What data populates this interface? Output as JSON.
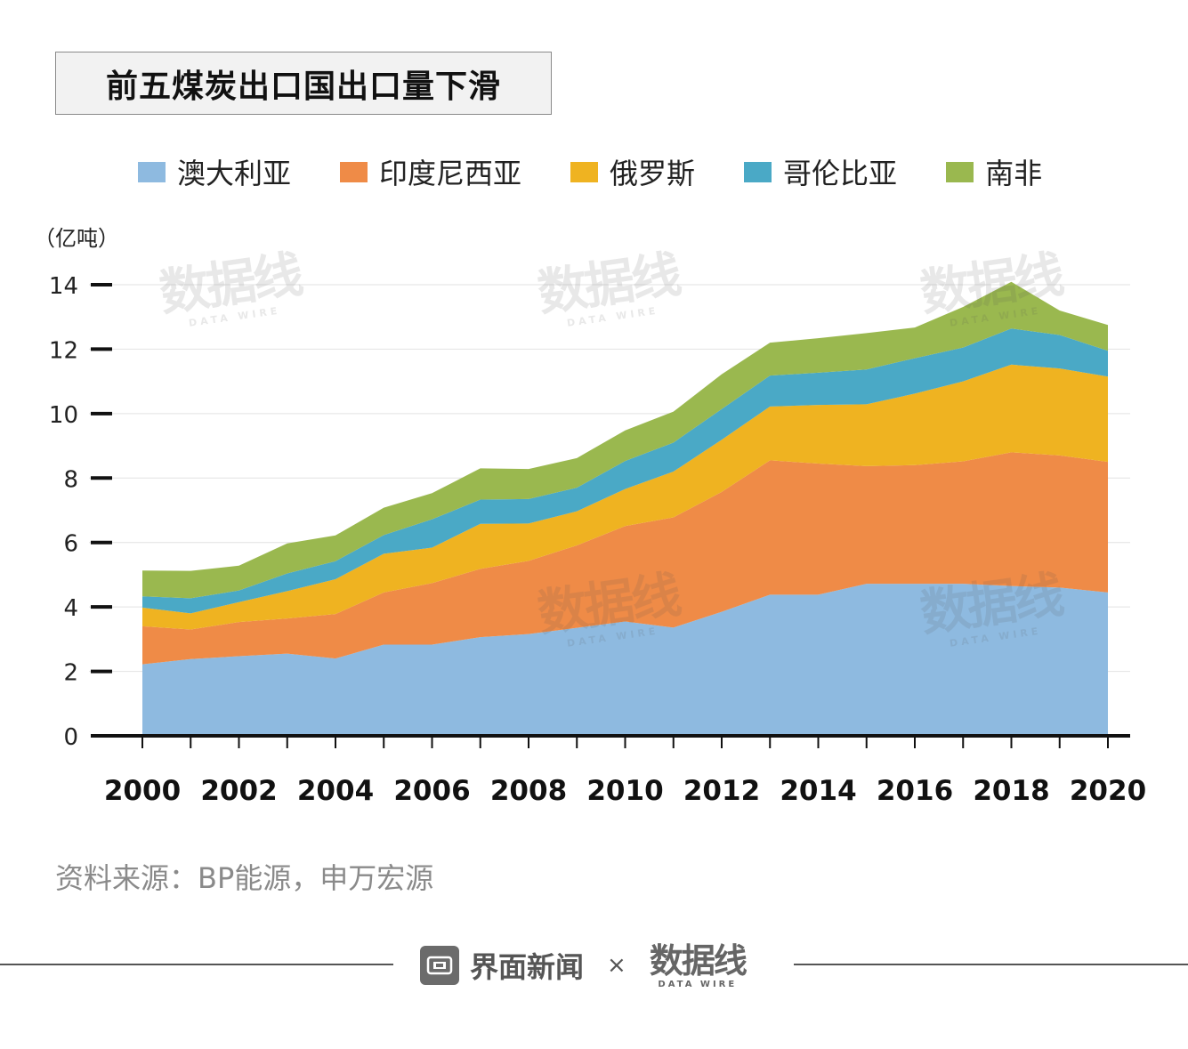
{
  "title": "前五煤炭出口国出口量下滑",
  "legend": [
    {
      "name": "澳大利亚",
      "color": "#8ebae0"
    },
    {
      "name": "印度尼西亚",
      "color": "#ef8b47"
    },
    {
      "name": "俄罗斯",
      "color": "#efb321"
    },
    {
      "name": "哥伦比亚",
      "color": "#4aa9c6"
    },
    {
      "name": "南非",
      "color": "#9ab84f"
    }
  ],
  "source": "资料来源：BP能源，申万宏源",
  "footer": {
    "brand": "界面新闻",
    "times": "×",
    "partner_cn": "数据线",
    "partner_en": "DATA WIRE"
  },
  "watermark": {
    "cn": "数据线",
    "en": "DATA WIRE"
  },
  "chart_data": {
    "type": "area",
    "stacked": true,
    "title": "前五煤炭出口国出口量下滑",
    "ylabel": "（亿吨）",
    "xlabel": "",
    "ylim": [
      0,
      14
    ],
    "yticks": [
      0,
      2,
      4,
      6,
      8,
      10,
      12,
      14
    ],
    "xtick_labels": [
      "2000",
      "2002",
      "2004",
      "2006",
      "2008",
      "2010",
      "2012",
      "2014",
      "2016",
      "2018",
      "2020"
    ],
    "x": [
      2000,
      2001,
      2002,
      2003,
      2004,
      2005,
      2006,
      2007,
      2008,
      2009,
      2010,
      2011,
      2012,
      2013,
      2014,
      2015,
      2016,
      2017,
      2018,
      2019,
      2020
    ],
    "grid": true,
    "legend_position": "top",
    "series": [
      {
        "name": "澳大利亚",
        "values": [
          2.22,
          2.38,
          2.47,
          2.55,
          2.4,
          2.83,
          2.83,
          3.06,
          3.16,
          3.35,
          3.55,
          3.36,
          3.85,
          4.38,
          4.38,
          4.72,
          4.72,
          4.72,
          4.65,
          4.6,
          4.45
        ]
      },
      {
        "name": "印度尼西亚",
        "values": [
          1.18,
          0.92,
          1.06,
          1.09,
          1.38,
          1.62,
          1.91,
          2.12,
          2.27,
          2.56,
          2.96,
          3.42,
          3.72,
          4.17,
          4.07,
          3.65,
          3.68,
          3.8,
          4.15,
          4.1,
          4.05
        ]
      },
      {
        "name": "俄罗斯",
        "values": [
          0.58,
          0.5,
          0.62,
          0.85,
          1.08,
          1.2,
          1.1,
          1.4,
          1.16,
          1.06,
          1.15,
          1.42,
          1.62,
          1.67,
          1.82,
          1.92,
          2.22,
          2.48,
          2.72,
          2.7,
          2.65
        ]
      },
      {
        "name": "哥伦比亚",
        "values": [
          0.35,
          0.47,
          0.36,
          0.55,
          0.56,
          0.58,
          0.88,
          0.75,
          0.76,
          0.73,
          0.87,
          0.9,
          0.95,
          0.96,
          1.0,
          1.08,
          1.1,
          1.05,
          1.12,
          1.04,
          0.8
        ]
      },
      {
        "name": "南非",
        "values": [
          0.8,
          0.85,
          0.77,
          0.93,
          0.8,
          0.85,
          0.81,
          0.97,
          0.93,
          0.92,
          0.95,
          0.96,
          1.08,
          1.02,
          1.07,
          1.13,
          0.95,
          1.26,
          1.45,
          0.76,
          0.8
        ]
      }
    ]
  }
}
